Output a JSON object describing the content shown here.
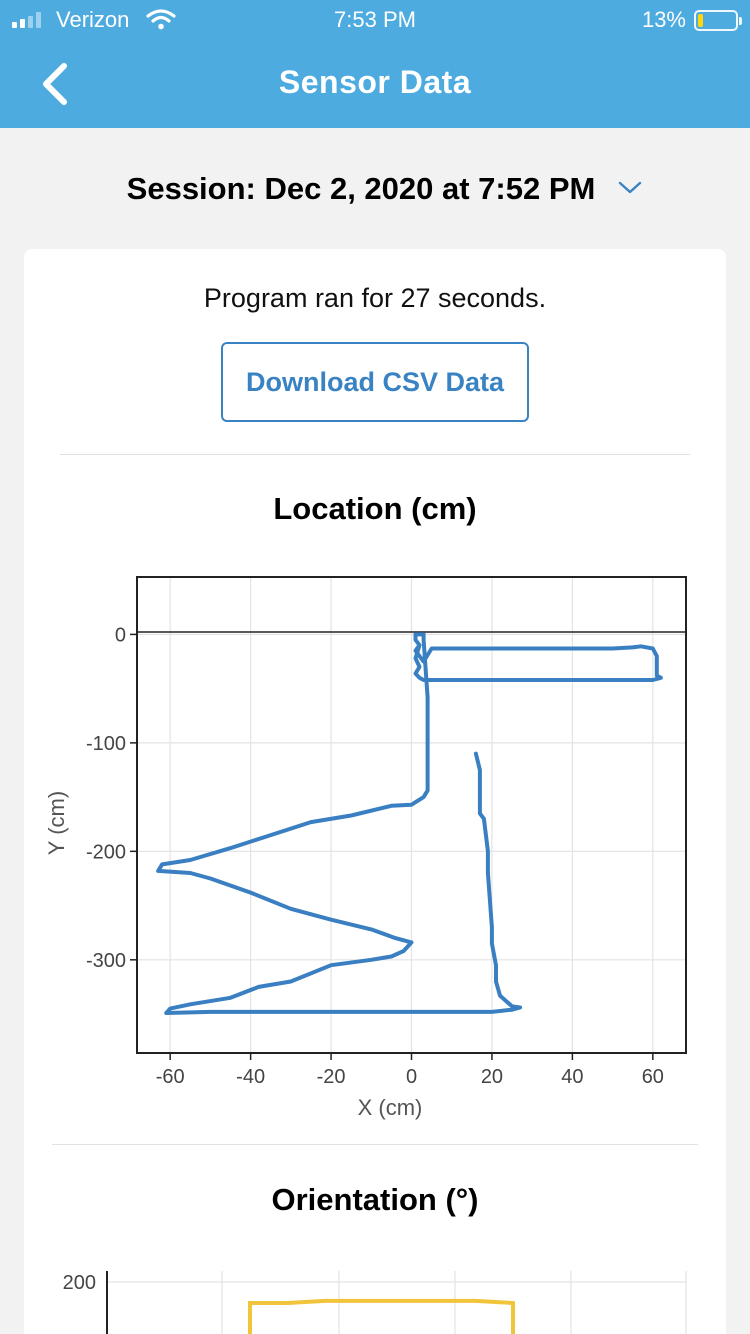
{
  "status_bar": {
    "carrier": "Verizon",
    "time": "7:53 PM",
    "battery": "13%"
  },
  "nav": {
    "title": "Sensor Data",
    "back_icon": "chevron-left-icon"
  },
  "session": {
    "label": "Session: Dec 2, 2020 at 7:52 PM",
    "icon": "chevron-down-icon"
  },
  "summary": {
    "runtime_text": "Program ran for 27 seconds.",
    "download_label": "Download CSV Data"
  },
  "colors": {
    "header": "#4dabdf",
    "accent": "#3a83c3",
    "location_line": "#3a7fc2",
    "orientation_line": "#f0c53c"
  },
  "chart_data": [
    {
      "type": "line",
      "title": "Location (cm)",
      "xlabel": "X (cm)",
      "ylabel": "Y (cm)",
      "xlim": [
        -68,
        68
      ],
      "ylim": [
        -385,
        52
      ],
      "x_ticks": [
        -60,
        -40,
        -20,
        0,
        20,
        40,
        60
      ],
      "y_ticks": [
        0,
        -100,
        -200,
        -300
      ],
      "grid": true,
      "series": [
        {
          "x": [
            16,
            17,
            17,
            18,
            19,
            19,
            20,
            20,
            21,
            21,
            22,
            25,
            27,
            25,
            20,
            10,
            0,
            -10,
            -20,
            -40,
            -50,
            -61,
            -60,
            -55,
            -45,
            -38,
            -30,
            -20,
            -10,
            -5,
            -2,
            0,
            -4,
            -10,
            -20,
            -30,
            -40,
            -50,
            -55,
            -63,
            -62,
            -55,
            -45,
            -35,
            -25,
            -15,
            -5,
            0,
            3,
            4,
            4,
            3,
            3,
            2,
            1,
            1,
            2,
            1,
            2,
            3,
            5,
            10,
            20,
            30,
            40,
            50,
            55,
            57,
            60,
            61,
            61,
            62,
            60,
            55,
            40,
            20,
            10,
            3,
            2,
            1,
            2,
            1,
            2
          ],
          "y": [
            -110,
            -125,
            -165,
            -170,
            -200,
            -220,
            -270,
            -285,
            -305,
            -320,
            -333,
            -343,
            -344,
            -346,
            -348,
            -348,
            -348,
            -348,
            -348,
            -348,
            -348,
            -349,
            -345,
            -341,
            -335,
            -325,
            -320,
            -305,
            -300,
            -297,
            -292,
            -284,
            -280,
            -272,
            -263,
            -253,
            -238,
            -225,
            -220,
            -218,
            -212,
            -208,
            -197,
            -185,
            -173,
            -167,
            -158,
            -157,
            -150,
            -144,
            -58,
            -5,
            0,
            0,
            0,
            -5,
            -10,
            -15,
            -20,
            -25,
            -13,
            -13,
            -13,
            -13,
            -13,
            -13,
            -12,
            -11,
            -13,
            -20,
            -38,
            -40,
            -42,
            -42,
            -42,
            -42,
            -42,
            -42,
            -40,
            -36,
            -30,
            -22,
            -10
          ]
        }
      ]
    },
    {
      "type": "line",
      "title": "Orientation (°)",
      "y_ticks": [
        200
      ],
      "grid": true,
      "series": [
        {
          "x": [
            0,
            1,
            2,
            3,
            4,
            5,
            6,
            7
          ],
          "y": [
            190,
            190,
            191,
            191,
            191,
            191,
            191,
            190
          ]
        }
      ]
    }
  ]
}
